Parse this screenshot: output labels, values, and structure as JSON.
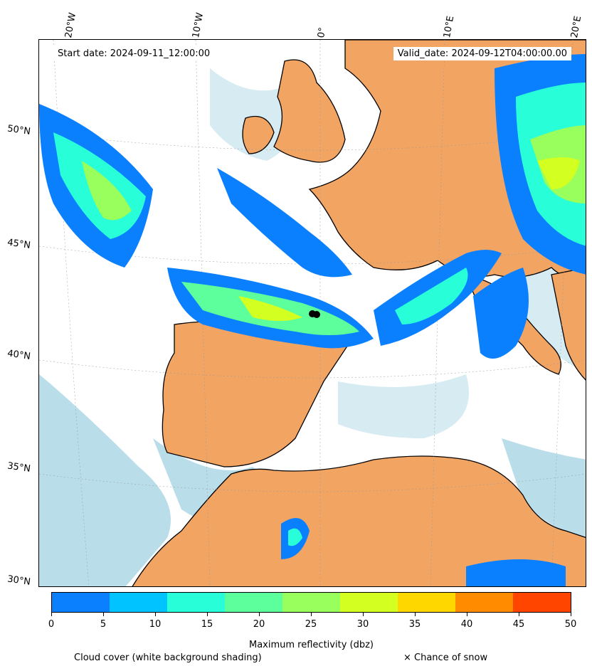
{
  "header": {
    "start_date": "Start date: 2024-09-11_12:00:00",
    "valid_date": "Valid_date: 2024-09-12T04:00:00.00"
  },
  "longitude_labels": [
    "20°W",
    "10°W",
    "0°",
    "10°E",
    "20°E"
  ],
  "latitude_labels": [
    "50°N",
    "45°N",
    "40°N",
    "35°N",
    "30°N"
  ],
  "colorbar": {
    "label": "Maximum reflectivity (dbz)",
    "ticks": [
      "0",
      "5",
      "10",
      "15",
      "20",
      "25",
      "30",
      "35",
      "40",
      "45",
      "50"
    ],
    "colors": [
      "#0a80ff",
      "#00c3ff",
      "#28ffd8",
      "#5cff9c",
      "#98ff5c",
      "#d3ff21",
      "#ffd700",
      "#ff8c00",
      "#ff4500"
    ]
  },
  "legend": {
    "cloud_cover": "Cloud cover (white background shading)",
    "snow": "× Chance of snow"
  },
  "map": {
    "colors": {
      "land": "#f2a463",
      "sea_cloud": "#add8e6",
      "coast": "#000000",
      "marker": "#000000"
    }
  }
}
